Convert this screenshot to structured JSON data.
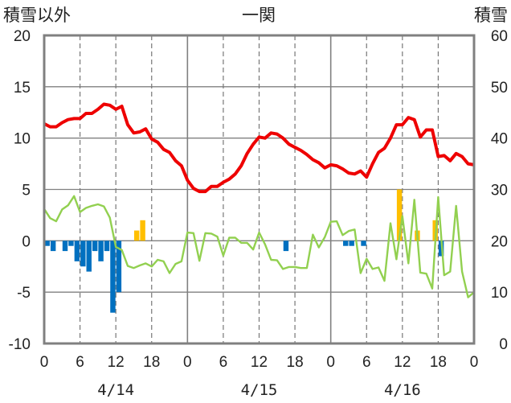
{
  "chart_data": {
    "type": "line",
    "title": "一関",
    "left_axis": {
      "label": "積雪以外",
      "ylim": [
        -10,
        20
      ],
      "ticks": [
        "20",
        "15",
        "10",
        "5",
        "0",
        "-5",
        "-10"
      ]
    },
    "right_axis": {
      "label": "積雪",
      "ylim": [
        0,
        60
      ],
      "ticks": [
        "60",
        "50",
        "40",
        "30",
        "20",
        "10",
        "0"
      ]
    },
    "x_tick_labels": [
      "0",
      "6",
      "12",
      "18",
      "0",
      "6",
      "12",
      "18",
      "0",
      "6",
      "12",
      "18",
      "0"
    ],
    "date_labels": [
      "4/14",
      "4/15",
      "4/16"
    ],
    "grid": true,
    "hours": 72,
    "colors": {
      "temperature": "#ee0000",
      "snowfall": "#ffbf00",
      "precip_deficit": "#0070c0",
      "snow_depth": "#92d050",
      "zero_line": "#7030a0",
      "frame": "#808080"
    },
    "series": [
      {
        "axis": "left",
        "kind": "line",
        "values": [
          11.4,
          11.1,
          11.1,
          11.5,
          11.8,
          11.9,
          11.9,
          12.4,
          12.4,
          12.8,
          13.3,
          13.2,
          12.8,
          13.1,
          11.3,
          10.5,
          10.6,
          10.9,
          9.9,
          9.6,
          8.9,
          8.6,
          7.8,
          7.3,
          5.9,
          5.1,
          4.8,
          4.8,
          5.3,
          5.3,
          5.7,
          6.0,
          6.5,
          7.3,
          8.5,
          9.4,
          10.1,
          10.0,
          10.5,
          10.4,
          10.0,
          9.4,
          9.1,
          8.8,
          8.4,
          7.9,
          7.6,
          7.1,
          7.4,
          7.3,
          7.0,
          6.6,
          6.5,
          6.8,
          6.2,
          7.5,
          8.6,
          9.0,
          10.0,
          11.3,
          11.3,
          12.0,
          11.8,
          10.1,
          10.8,
          10.8,
          8.2,
          8.3,
          7.8,
          8.5,
          8.2,
          7.5,
          7.4
        ]
      },
      {
        "axis": "left",
        "kind": "bar",
        "values": [
          0,
          0,
          0,
          0,
          0,
          0,
          0,
          0,
          0,
          0,
          0,
          0,
          0,
          0,
          0,
          1,
          2,
          0,
          0,
          0,
          0,
          0,
          0,
          0,
          0,
          0,
          0,
          0,
          0,
          0,
          0,
          0,
          0,
          0,
          0,
          0,
          0,
          0,
          0,
          0,
          0,
          0,
          0,
          0,
          0,
          0,
          0,
          0,
          0,
          0,
          0,
          0,
          0,
          0,
          0,
          0,
          0,
          0,
          0,
          5,
          0,
          0,
          1,
          0,
          0,
          2,
          0,
          0,
          0,
          0,
          0,
          0
        ]
      },
      {
        "axis": "left",
        "kind": "bar",
        "values": [
          -0.5,
          -1,
          0,
          -1,
          -0.5,
          -2,
          -2.5,
          -3,
          -1,
          -2,
          -1,
          -7,
          -5,
          0,
          0,
          0,
          0,
          0,
          0,
          0,
          0,
          0,
          0,
          0,
          0,
          0,
          0,
          0,
          0,
          0,
          0,
          0,
          0,
          0,
          0,
          0,
          0,
          0,
          0,
          0,
          -1,
          0,
          0,
          0,
          0,
          0,
          0,
          0,
          0,
          0,
          -0.5,
          -0.5,
          0,
          -0.5,
          0,
          0,
          0,
          0,
          0,
          0,
          0,
          0,
          0,
          0,
          0,
          0,
          -1.5,
          0,
          0,
          0,
          0,
          0,
          0
        ]
      },
      {
        "axis": "right",
        "kind": "line",
        "values": [
          26.2,
          24.4,
          23.8,
          26.1,
          26.9,
          28.7,
          25.6,
          26.4,
          26.8,
          27.1,
          26.7,
          24.5,
          18.8,
          18.2,
          15.1,
          14.7,
          15.2,
          15.6,
          15.0,
          16.3,
          16.0,
          13.7,
          15.5,
          16.0,
          21.6,
          21.5,
          16.1,
          21.5,
          21.4,
          20.8,
          17.1,
          20.6,
          20.6,
          19.6,
          19.6,
          18.3,
          21.6,
          19.3,
          16.3,
          16.2,
          14.5,
          14.9,
          14.9,
          14.7,
          14.7,
          21.2,
          18.7,
          20.7,
          23.7,
          23.8,
          21.1,
          21.9,
          22.2,
          13.7,
          16.5,
          14.5,
          14.8,
          12.2,
          23.4,
          16.4,
          24.8,
          15.6,
          28.0,
          13.8,
          13.6,
          10.7,
          28.5,
          13.3,
          14.0,
          26.8,
          14.0,
          9.0,
          10.0
        ]
      }
    ]
  }
}
